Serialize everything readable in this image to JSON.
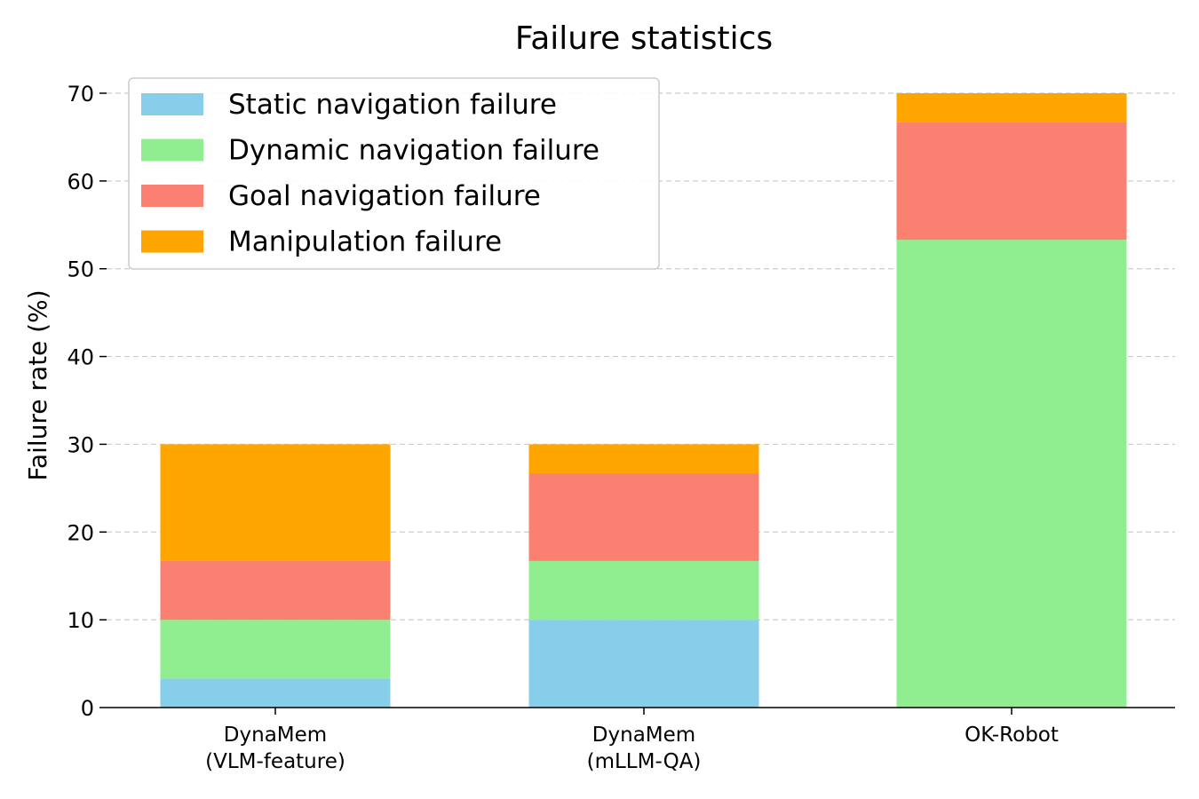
{
  "chart_data": {
    "type": "bar",
    "stacked": true,
    "title": "Failure statistics",
    "xlabel": "",
    "ylabel": "Failure rate (%)",
    "ylim": [
      0,
      70
    ],
    "yticks": [
      0,
      10,
      20,
      30,
      40,
      50,
      60,
      70
    ],
    "grid": "horizontal dashed",
    "legend_position": "top-left",
    "categories": [
      [
        "DynaMem",
        "(VLM-feature)"
      ],
      [
        "DynaMem",
        "(mLLM-QA)"
      ],
      [
        "OK-Robot"
      ]
    ],
    "series": [
      {
        "name": "Static navigation failure",
        "color": "#87CEEB",
        "values": [
          3.3,
          10.0,
          0.0
        ]
      },
      {
        "name": "Dynamic navigation failure",
        "color": "#90EE90",
        "values": [
          6.7,
          6.7,
          53.3
        ]
      },
      {
        "name": "Goal navigation failure",
        "color": "#FA8072",
        "values": [
          6.7,
          10.0,
          13.4
        ]
      },
      {
        "name": "Manipulation failure",
        "color": "#FFA500",
        "values": [
          13.3,
          3.3,
          3.3
        ]
      }
    ]
  }
}
